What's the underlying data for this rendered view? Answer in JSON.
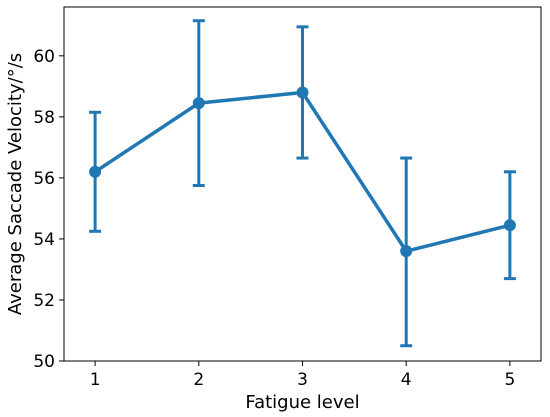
{
  "chart_data": {
    "type": "line",
    "title": "",
    "xlabel": "Fatigue level",
    "ylabel": "Average Saccade Velocity/°/s",
    "x": [
      1,
      2,
      3,
      4,
      5
    ],
    "x_tick_labels": [
      "1",
      "2",
      "3",
      "4",
      "5"
    ],
    "y_ticks": [
      50,
      52,
      54,
      56,
      58,
      60
    ],
    "y_tick_labels": [
      "50",
      "52",
      "54",
      "56",
      "58",
      "60"
    ],
    "xlim": [
      0.7,
      5.3
    ],
    "ylim": [
      50,
      61.6
    ],
    "grid": false,
    "series": [
      {
        "values": [
          56.2,
          58.45,
          58.8,
          53.6,
          54.45
        ],
        "error_low": [
          54.25,
          55.75,
          56.65,
          50.5,
          52.7
        ],
        "error_high": [
          58.15,
          61.15,
          60.95,
          56.65,
          56.2
        ],
        "color": "#1f77b4"
      }
    ]
  }
}
